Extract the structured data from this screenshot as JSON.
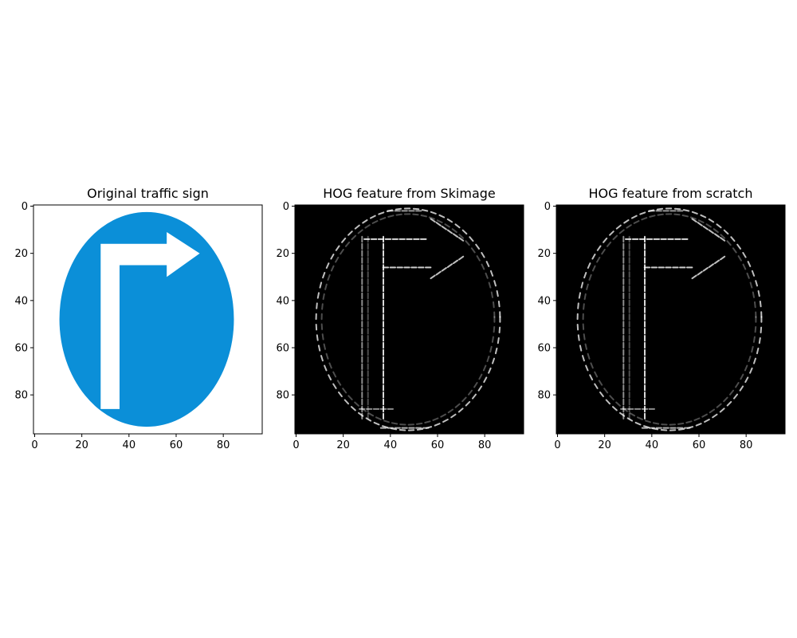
{
  "panels": [
    {
      "id": "original",
      "title": "Original traffic sign",
      "kind": "image",
      "background": "#ffffff",
      "sign_color": "#0b8fd8",
      "arrow_color": "#ffffff",
      "xticks": [
        "0",
        "20",
        "40",
        "60",
        "80"
      ],
      "yticks": [
        "0",
        "20",
        "40",
        "60",
        "80"
      ],
      "x_range": [
        0,
        96
      ],
      "y_range": [
        0,
        96
      ]
    },
    {
      "id": "hog-skimage",
      "title": "HOG feature from Skimage",
      "kind": "hog",
      "background": "#000000",
      "feature_color": "#ffffff",
      "xticks": [
        "0",
        "20",
        "40",
        "60",
        "80"
      ],
      "yticks": [
        "0",
        "20",
        "40",
        "60",
        "80"
      ],
      "x_range": [
        0,
        96
      ],
      "y_range": [
        0,
        96
      ]
    },
    {
      "id": "hog-scratch",
      "title": "HOG feature from scratch",
      "kind": "hog",
      "background": "#000000",
      "feature_color": "#ffffff",
      "xticks": [
        "0",
        "20",
        "40",
        "60",
        "80"
      ],
      "yticks": [
        "0",
        "20",
        "40",
        "60",
        "80"
      ],
      "x_range": [
        0,
        96
      ],
      "y_range": [
        0,
        96
      ]
    }
  ]
}
